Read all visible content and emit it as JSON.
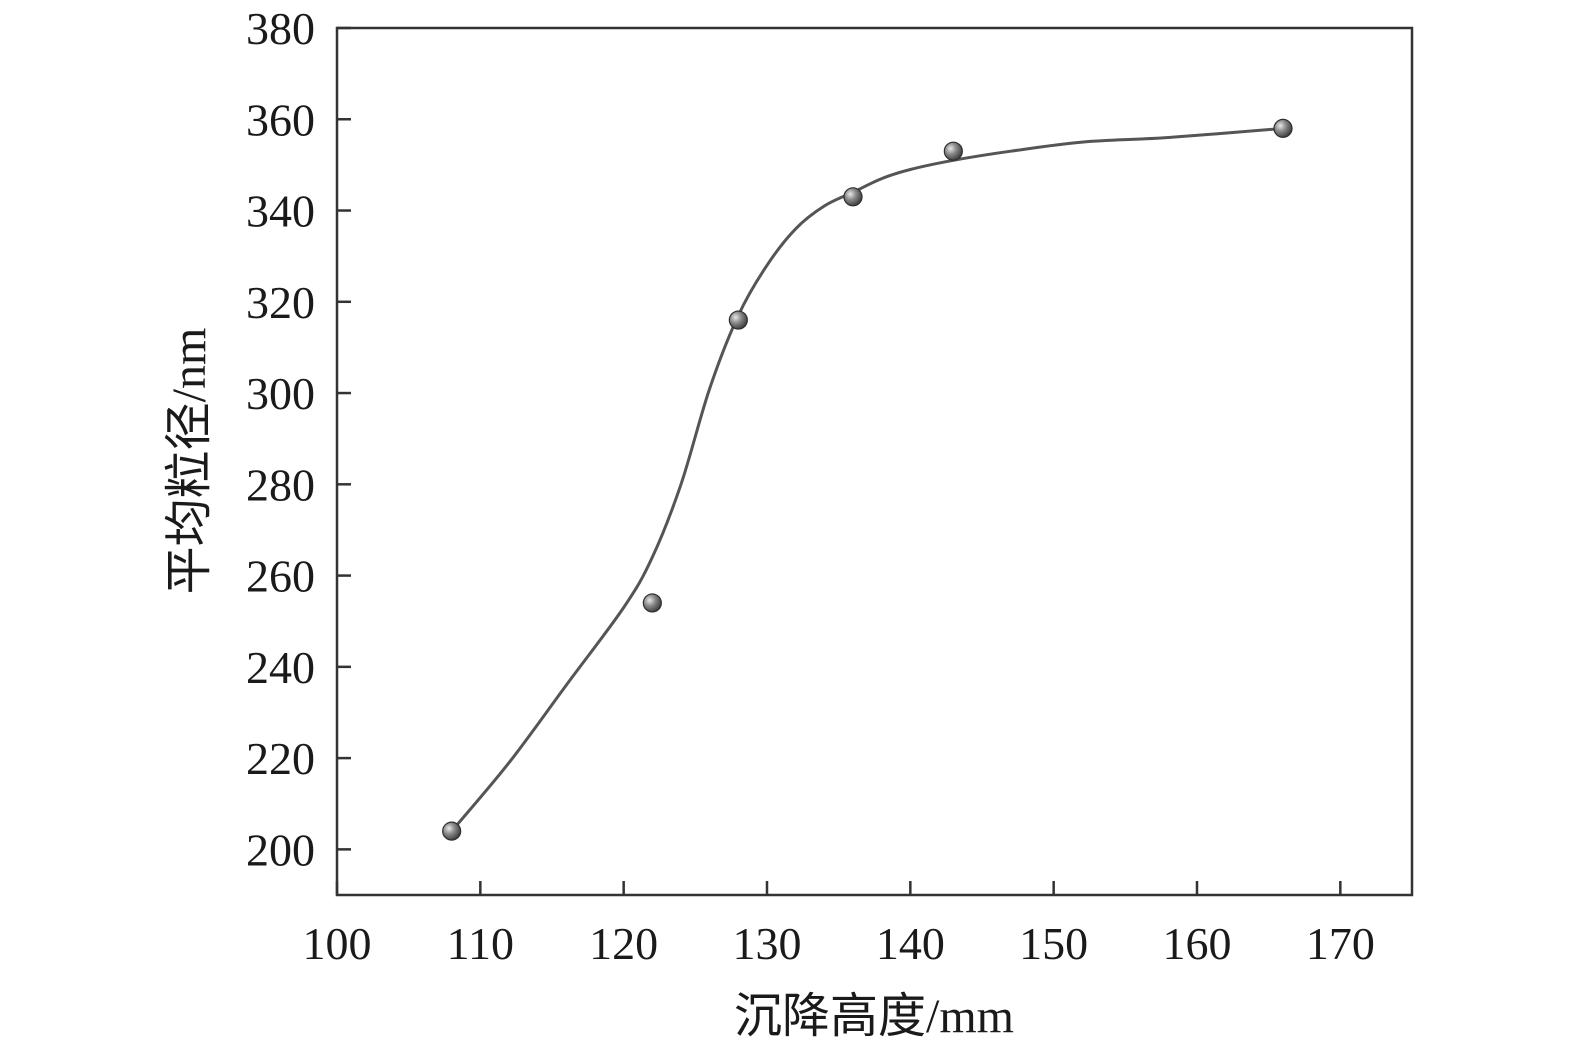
{
  "chart_data": {
    "type": "scatter",
    "title": "",
    "xlabel": "沉降高度/mm",
    "ylabel": "平均粒径/nm",
    "xlim": [
      100,
      175
    ],
    "ylim": [
      190,
      380
    ],
    "x_ticks": [
      100,
      110,
      120,
      130,
      140,
      150,
      160,
      170
    ],
    "y_ticks": [
      200,
      220,
      240,
      260,
      280,
      300,
      320,
      340,
      360,
      380
    ],
    "grid": false,
    "legend": "none",
    "series": [
      {
        "marker": "sphere",
        "color": "#555555",
        "x": [
          108,
          122,
          128,
          136,
          143,
          166
        ],
        "y": [
          204,
          254,
          316,
          343,
          353,
          358
        ]
      }
    ],
    "fit_curve": {
      "kind": "sigmoid",
      "color": "#555555",
      "x": [
        108,
        112,
        116,
        120,
        122,
        124,
        126,
        128,
        130,
        132,
        134,
        136,
        138,
        140,
        143,
        147,
        152,
        158,
        166
      ],
      "y": [
        204,
        219,
        236,
        253,
        264,
        280,
        301,
        317,
        328,
        336,
        341,
        344,
        347,
        349,
        351,
        353,
        355,
        356,
        358
      ]
    }
  }
}
